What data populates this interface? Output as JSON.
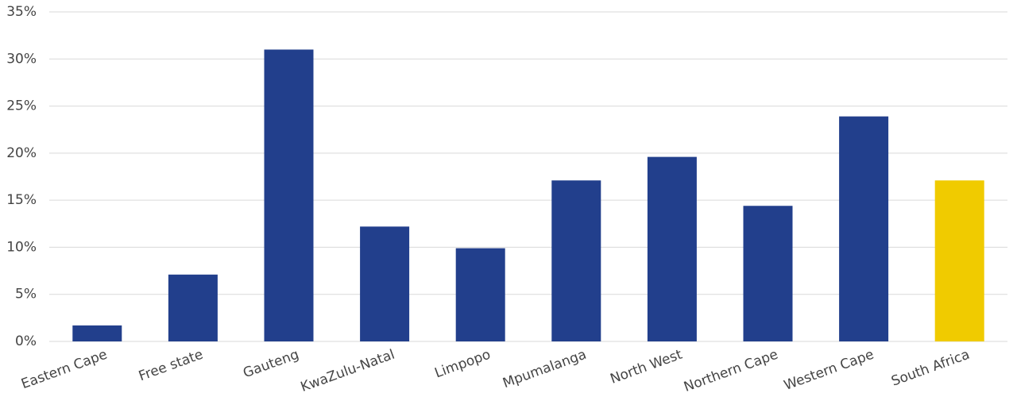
{
  "chart_data": {
    "type": "bar",
    "categories": [
      "Eastern Cape",
      "Free state",
      "Gauteng",
      "KwaZulu-Natal",
      "Limpopo",
      "Mpumalanga",
      "North West",
      "Northern Cape",
      "Western Cape",
      "South Africa"
    ],
    "values": [
      1.7,
      7.1,
      31.0,
      12.2,
      9.9,
      17.1,
      19.6,
      14.4,
      23.9,
      17.1
    ],
    "colors": [
      "#223f8c",
      "#223f8c",
      "#223f8c",
      "#223f8c",
      "#223f8c",
      "#223f8c",
      "#223f8c",
      "#223f8c",
      "#223f8c",
      "#f0cb00"
    ],
    "ylim": [
      0,
      35
    ],
    "yticks": [
      {
        "value": 0,
        "label": "0%"
      },
      {
        "value": 5,
        "label": "5%"
      },
      {
        "value": 10,
        "label": "10%"
      },
      {
        "value": 15,
        "label": "15%"
      },
      {
        "value": 20,
        "label": "20%"
      },
      {
        "value": 25,
        "label": "25%"
      },
      {
        "value": 30,
        "label": "30%"
      },
      {
        "value": 35,
        "label": "35%"
      }
    ],
    "grid": true
  }
}
